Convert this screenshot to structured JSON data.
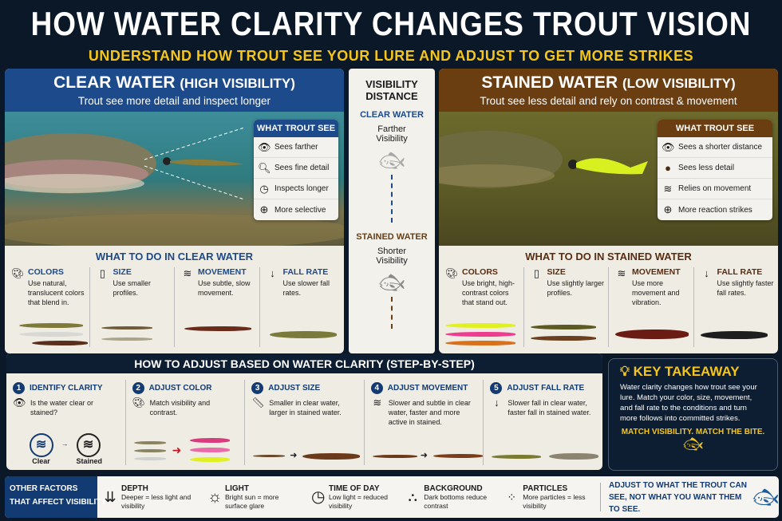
{
  "title": "HOW WATER CLARITY CHANGES TROUT VISION",
  "subtitle": "UNDERSTAND HOW TROUT SEE YOUR LURE AND ADJUST TO GET MORE STRIKES",
  "colors": {
    "navy": "#0b1828",
    "clear_blue": "#1d4a8a",
    "stained_brown": "#6b3e12",
    "accent_yellow": "#f5c518"
  },
  "clear": {
    "heading": "CLEAR WATER",
    "heading_note": "(HIGH VISIBILITY)",
    "sub": "Trout see more detail and inspect longer",
    "see_title": "WHAT TROUT SEE",
    "see": [
      {
        "icon": "eye-icon",
        "text": "Sees farther"
      },
      {
        "icon": "magnifier-icon",
        "text": "Sees fine detail"
      },
      {
        "icon": "clock-icon",
        "text": "Inspects longer"
      },
      {
        "icon": "crosshair-icon",
        "text": "More selective"
      }
    ],
    "todo_title": "WHAT TO DO IN CLEAR WATER",
    "todo": [
      {
        "icon": "palette-icon",
        "name": "COLORS",
        "desc": "Use natural, translucent colors that blend in."
      },
      {
        "icon": "ruler-icon",
        "name": "SIZE",
        "desc": "Use smaller profiles."
      },
      {
        "icon": "waves-icon",
        "name": "MOVEMENT",
        "desc": "Use subtle, slow movement."
      },
      {
        "icon": "down-arrow-icon",
        "name": "FALL RATE",
        "desc": "Use slower fall rates."
      }
    ]
  },
  "stained": {
    "heading": "STAINED WATER",
    "heading_note": "(LOW VISIBILITY)",
    "sub": "Trout see less detail and rely on contrast & movement",
    "see_title": "WHAT TROUT SEE",
    "see": [
      {
        "icon": "eye-icon",
        "text": "Sees a shorter distance"
      },
      {
        "icon": "dot-icon",
        "text": "Sees less detail"
      },
      {
        "icon": "waves-icon",
        "text": "Relies on movement"
      },
      {
        "icon": "crosshair-icon",
        "text": "More reaction strikes"
      }
    ],
    "todo_title": "WHAT TO DO IN STAINED WATER",
    "todo": [
      {
        "icon": "palette-icon",
        "name": "COLORS",
        "desc": "Use bright, high-contrast colors that stand out."
      },
      {
        "icon": "ruler-icon",
        "name": "SIZE",
        "desc": "Use slightly larger profiles."
      },
      {
        "icon": "waves-icon",
        "name": "MOVEMENT",
        "desc": "Use more movement and vibration."
      },
      {
        "icon": "down-arrow-icon",
        "name": "FALL RATE",
        "desc": "Use slightly faster fall rates."
      }
    ]
  },
  "distance": {
    "title": "VISIBILITY DISTANCE",
    "clear_label": "CLEAR WATER",
    "clear_desc": "Farther Visibility",
    "stained_label": "STAINED WATER",
    "stained_desc": "Shorter Visibility"
  },
  "steps": {
    "title": "HOW TO ADJUST BASED ON WATER CLARITY (STEP-BY-STEP)",
    "items": [
      {
        "n": "1",
        "title": "IDENTIFY CLARITY",
        "desc": "Is the water clear or stained?",
        "icon": "eye-icon"
      },
      {
        "n": "2",
        "title": "ADJUST COLOR",
        "desc": "Match visibility and contrast.",
        "icon": "palette-icon"
      },
      {
        "n": "3",
        "title": "ADJUST SIZE",
        "desc": "Smaller in clear water, larger in stained water.",
        "icon": "ruler-icon"
      },
      {
        "n": "4",
        "title": "ADJUST MOVEMENT",
        "desc": "Slower and subtle in clear water, faster and more active in stained.",
        "icon": "waves-icon"
      },
      {
        "n": "5",
        "title": "ADJUST FALL RATE",
        "desc": "Slower fall in clear water, faster fall in stained water.",
        "icon": "down-arrow-icon"
      }
    ],
    "clear_label": "Clear",
    "stained_label": "Stained"
  },
  "key": {
    "title": "KEY TAKEAWAY",
    "body": "Water clarity changes how trout see your lure. Match your color, size, movement, and fall rate to the conditions and turn more follows into committed strikes.",
    "slogan": "MATCH VISIBILITY. MATCH THE BITE."
  },
  "factors": {
    "title_line1": "OTHER FACTORS",
    "title_line2": "THAT AFFECT VISIBILITY",
    "items": [
      {
        "icon": "depth-icon",
        "name": "DEPTH",
        "desc": "Deeper = less light and visibility"
      },
      {
        "icon": "sun-icon",
        "name": "LIGHT",
        "desc": "Bright sun = more surface glare"
      },
      {
        "icon": "clock-icon",
        "name": "TIME OF DAY",
        "desc": "Low light = reduced visibility"
      },
      {
        "icon": "rocks-icon",
        "name": "BACKGROUND",
        "desc": "Dark bottoms reduce contrast"
      },
      {
        "icon": "particles-icon",
        "name": "PARTICLES",
        "desc": "More particles = less visibility"
      }
    ],
    "closing": "ADJUST TO WHAT THE TROUT CAN SEE, NOT WHAT YOU WANT THEM TO SEE."
  }
}
